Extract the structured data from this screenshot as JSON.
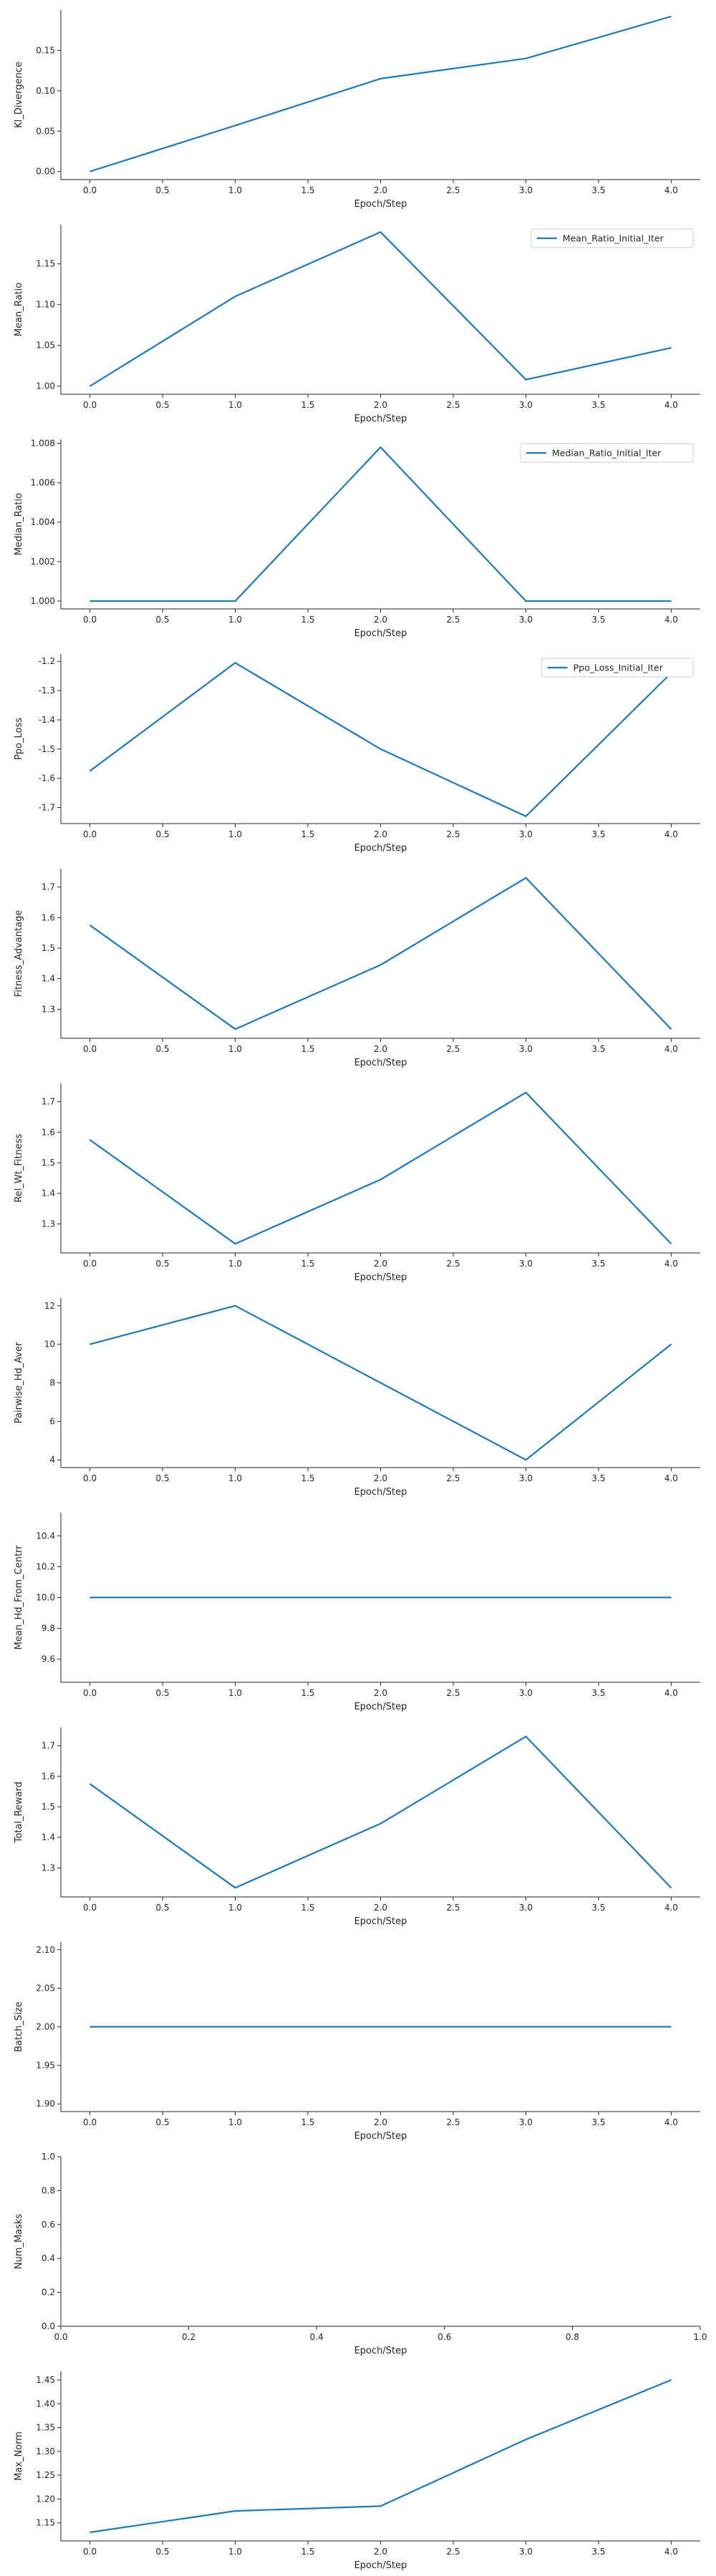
{
  "colors": {
    "line": "#1f77b4",
    "axis": "#262626"
  },
  "chart_data": [
    {
      "type": "line",
      "ylabel": "Kl_Divergence",
      "xlabel": "Epoch/Step",
      "xlim": [
        -0.2,
        4.2
      ],
      "ylim": [
        -0.01,
        0.2
      ],
      "xticks": [
        "0.0",
        "0.5",
        "1.0",
        "1.5",
        "2.0",
        "2.5",
        "3.0",
        "3.5",
        "4.0"
      ],
      "yticks": [
        "0.00",
        "0.05",
        "0.10",
        "0.15"
      ],
      "series": [
        {
          "x": [
            0,
            1,
            2,
            3,
            4
          ],
          "y": [
            0.0,
            0.057,
            0.115,
            0.14,
            0.192
          ]
        }
      ]
    },
    {
      "type": "line",
      "ylabel": "Mean_Ratio",
      "xlabel": "Epoch/Step",
      "xlim": [
        -0.2,
        4.2
      ],
      "ylim": [
        0.99,
        1.198
      ],
      "legend": "upper right",
      "xticks": [
        "0.0",
        "0.5",
        "1.0",
        "1.5",
        "2.0",
        "2.5",
        "3.0",
        "3.5",
        "4.0"
      ],
      "yticks": [
        "1.00",
        "1.05",
        "1.10",
        "1.15"
      ],
      "series": [
        {
          "name": "Mean_Ratio_Initial_Iter",
          "x": [
            0,
            1,
            2,
            3,
            4
          ],
          "y": [
            1.0,
            1.11,
            1.189,
            1.008,
            1.047
          ]
        }
      ]
    },
    {
      "type": "line",
      "ylabel": "Median_Ratio",
      "xlabel": "Epoch/Step",
      "xlim": [
        -0.2,
        4.2
      ],
      "ylim": [
        0.9996,
        1.0082
      ],
      "legend": "upper right",
      "xticks": [
        "0.0",
        "0.5",
        "1.0",
        "1.5",
        "2.0",
        "2.5",
        "3.0",
        "3.5",
        "4.0"
      ],
      "yticks": [
        "1.000",
        "1.002",
        "1.004",
        "1.006",
        "1.008"
      ],
      "series": [
        {
          "name": "Median_Ratio_Initial_Iter",
          "x": [
            0,
            1,
            2,
            3,
            4
          ],
          "y": [
            1.0,
            1.0,
            1.0078,
            1.0,
            1.0
          ]
        }
      ]
    },
    {
      "type": "line",
      "ylabel": "Ppo_Loss",
      "xlabel": "Epoch/Step",
      "xlim": [
        -0.2,
        4.2
      ],
      "ylim": [
        -1.755,
        -1.175
      ],
      "legend": "upper right",
      "xticks": [
        "0.0",
        "0.5",
        "1.0",
        "1.5",
        "2.0",
        "2.5",
        "3.0",
        "3.5",
        "4.0"
      ],
      "yticks": [
        "-1.7",
        "-1.6",
        "-1.5",
        "-1.4",
        "-1.3",
        "-1.2"
      ],
      "series": [
        {
          "name": "Ppo_Loss_Initial_Iter",
          "x": [
            0,
            1,
            2,
            3,
            4
          ],
          "y": [
            -1.575,
            -1.205,
            -1.5,
            -1.73,
            -1.24
          ]
        }
      ]
    },
    {
      "type": "line",
      "ylabel": "Fitness_Advantage",
      "xlabel": "Epoch/Step",
      "xlim": [
        -0.2,
        4.2
      ],
      "ylim": [
        1.205,
        1.76
      ],
      "xticks": [
        "0.0",
        "0.5",
        "1.0",
        "1.5",
        "2.0",
        "2.5",
        "3.0",
        "3.5",
        "4.0"
      ],
      "yticks": [
        "1.3",
        "1.4",
        "1.5",
        "1.6",
        "1.7"
      ],
      "series": [
        {
          "x": [
            0,
            1,
            2,
            3,
            4
          ],
          "y": [
            1.575,
            1.235,
            1.445,
            1.73,
            1.235
          ]
        }
      ]
    },
    {
      "type": "line",
      "ylabel": "Rel_Wt_Fitness",
      "xlabel": "Epoch/Step",
      "xlim": [
        -0.2,
        4.2
      ],
      "ylim": [
        1.205,
        1.76
      ],
      "xticks": [
        "0.0",
        "0.5",
        "1.0",
        "1.5",
        "2.0",
        "2.5",
        "3.0",
        "3.5",
        "4.0"
      ],
      "yticks": [
        "1.3",
        "1.4",
        "1.5",
        "1.6",
        "1.7"
      ],
      "series": [
        {
          "x": [
            0,
            1,
            2,
            3,
            4
          ],
          "y": [
            1.575,
            1.235,
            1.445,
            1.73,
            1.235
          ]
        }
      ]
    },
    {
      "type": "line",
      "ylabel": "Pairwise_Hd_Aver",
      "xlabel": "Epoch/Step",
      "xlim": [
        -0.2,
        4.2
      ],
      "ylim": [
        3.6,
        12.4
      ],
      "xticks": [
        "0.0",
        "0.5",
        "1.0",
        "1.5",
        "2.0",
        "2.5",
        "3.0",
        "3.5",
        "4.0"
      ],
      "yticks": [
        "4",
        "6",
        "8",
        "10",
        "12"
      ],
      "series": [
        {
          "x": [
            0,
            1,
            2,
            3,
            4
          ],
          "y": [
            10,
            12,
            8,
            4,
            10
          ]
        }
      ]
    },
    {
      "type": "line",
      "ylabel": "Mean_Hd_From_Centrr",
      "xlabel": "Epoch/Step",
      "xlim": [
        -0.2,
        4.2
      ],
      "ylim": [
        9.45,
        10.55
      ],
      "xticks": [
        "0.0",
        "0.5",
        "1.0",
        "1.5",
        "2.0",
        "2.5",
        "3.0",
        "3.5",
        "4.0"
      ],
      "yticks": [
        "9.6",
        "9.8",
        "10.0",
        "10.2",
        "10.4"
      ],
      "series": [
        {
          "x": [
            0,
            1,
            2,
            3,
            4
          ],
          "y": [
            10,
            10,
            10,
            10,
            10
          ]
        }
      ]
    },
    {
      "type": "line",
      "ylabel": "Total_Reward",
      "xlabel": "Epoch/Step",
      "xlim": [
        -0.2,
        4.2
      ],
      "ylim": [
        1.205,
        1.76
      ],
      "xticks": [
        "0.0",
        "0.5",
        "1.0",
        "1.5",
        "2.0",
        "2.5",
        "3.0",
        "3.5",
        "4.0"
      ],
      "yticks": [
        "1.3",
        "1.4",
        "1.5",
        "1.6",
        "1.7"
      ],
      "series": [
        {
          "x": [
            0,
            1,
            2,
            3,
            4
          ],
          "y": [
            1.575,
            1.235,
            1.445,
            1.73,
            1.235
          ]
        }
      ]
    },
    {
      "type": "line",
      "ylabel": "Batch_Size",
      "xlabel": "Epoch/Step",
      "xlim": [
        -0.2,
        4.2
      ],
      "ylim": [
        1.89,
        2.11
      ],
      "xticks": [
        "0.0",
        "0.5",
        "1.0",
        "1.5",
        "2.0",
        "2.5",
        "3.0",
        "3.5",
        "4.0"
      ],
      "yticks": [
        "1.90",
        "1.95",
        "2.00",
        "2.05",
        "2.10"
      ],
      "series": [
        {
          "x": [
            0,
            1,
            2,
            3,
            4
          ],
          "y": [
            2,
            2,
            2,
            2,
            2
          ]
        }
      ]
    },
    {
      "type": "line",
      "ylabel": "Num_Masks",
      "xlabel": "Epoch/Step",
      "xlim": [
        0,
        1
      ],
      "ylim": [
        0,
        1
      ],
      "xticks": [
        "0.0",
        "0.2",
        "0.4",
        "0.6",
        "0.8",
        "1.0"
      ],
      "yticks": [
        "0.0",
        "0.2",
        "0.4",
        "0.6",
        "0.8",
        "1.0"
      ],
      "series": []
    },
    {
      "type": "line",
      "ylabel": "Max_Norm",
      "xlabel": "Epoch/Step",
      "xlim": [
        -0.2,
        4.2
      ],
      "ylim": [
        1.112,
        1.468
      ],
      "xticks": [
        "0.0",
        "0.5",
        "1.0",
        "1.5",
        "2.0",
        "2.5",
        "3.0",
        "3.5",
        "4.0"
      ],
      "yticks": [
        "1.15",
        "1.20",
        "1.25",
        "1.30",
        "1.35",
        "1.40",
        "1.45"
      ],
      "series": [
        {
          "x": [
            0,
            1,
            2,
            3,
            4
          ],
          "y": [
            1.13,
            1.175,
            1.185,
            1.325,
            1.45
          ]
        }
      ]
    }
  ]
}
